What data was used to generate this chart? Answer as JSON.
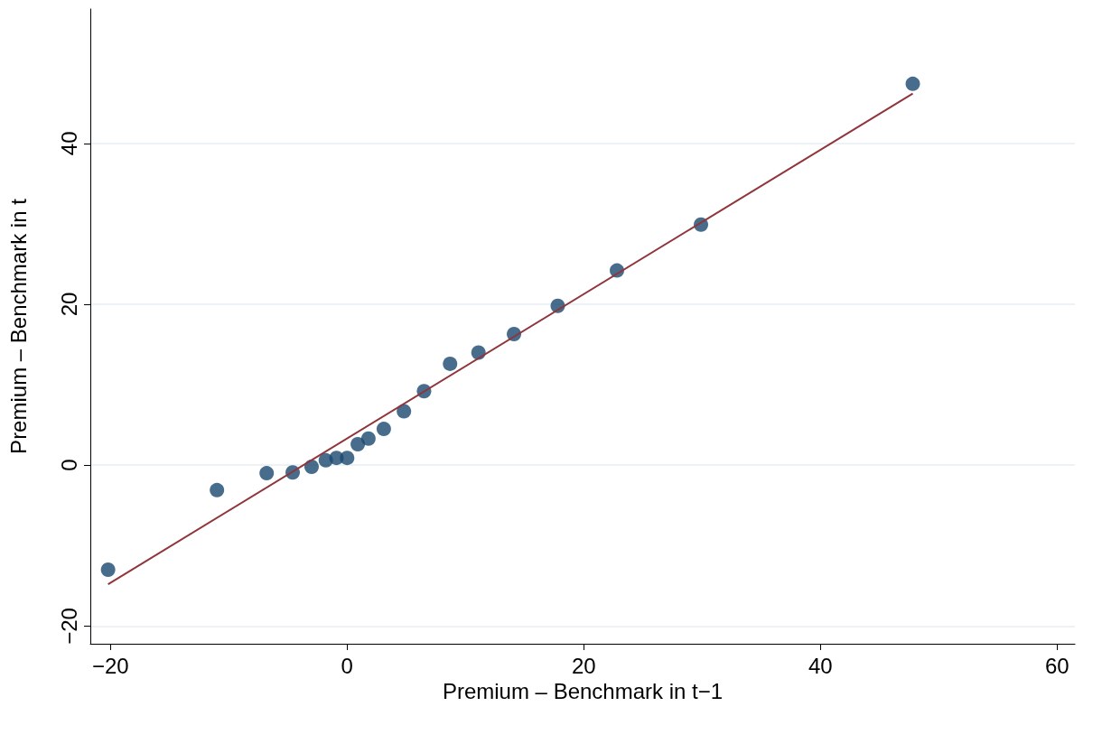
{
  "chart_data": {
    "type": "scatter",
    "xlabel": "Premium – Benchmark in t−1",
    "ylabel": "Premium – Benchmark in t",
    "xlim": [
      -21.7,
      61.5
    ],
    "ylim": [
      -22.2,
      56.7
    ],
    "xticks": [
      -20,
      0,
      20,
      40,
      60
    ],
    "yticks": [
      -20,
      0,
      20,
      40
    ],
    "grid": "y",
    "marker": "circle",
    "series": [
      {
        "color": "#1a476f",
        "x": [
          -20.2,
          -11.0,
          -6.8,
          -4.6,
          -3.0,
          -1.8,
          -0.9,
          0.0,
          0.9,
          1.8,
          3.1,
          4.8,
          6.5,
          8.7,
          11.1,
          14.1,
          17.8,
          22.8,
          29.9,
          47.8
        ],
        "values": [
          -13.0,
          -3.1,
          -1.0,
          -0.9,
          -0.2,
          0.6,
          0.9,
          0.9,
          2.6,
          3.3,
          4.5,
          6.7,
          9.2,
          12.6,
          14.0,
          16.3,
          19.8,
          24.2,
          29.9,
          47.4
        ]
      },
      {
        "type": "line",
        "color": "#90353b",
        "marker": "none",
        "x": [
          -20.2,
          47.8
        ],
        "values": [
          -14.8,
          46.2
        ]
      }
    ]
  }
}
